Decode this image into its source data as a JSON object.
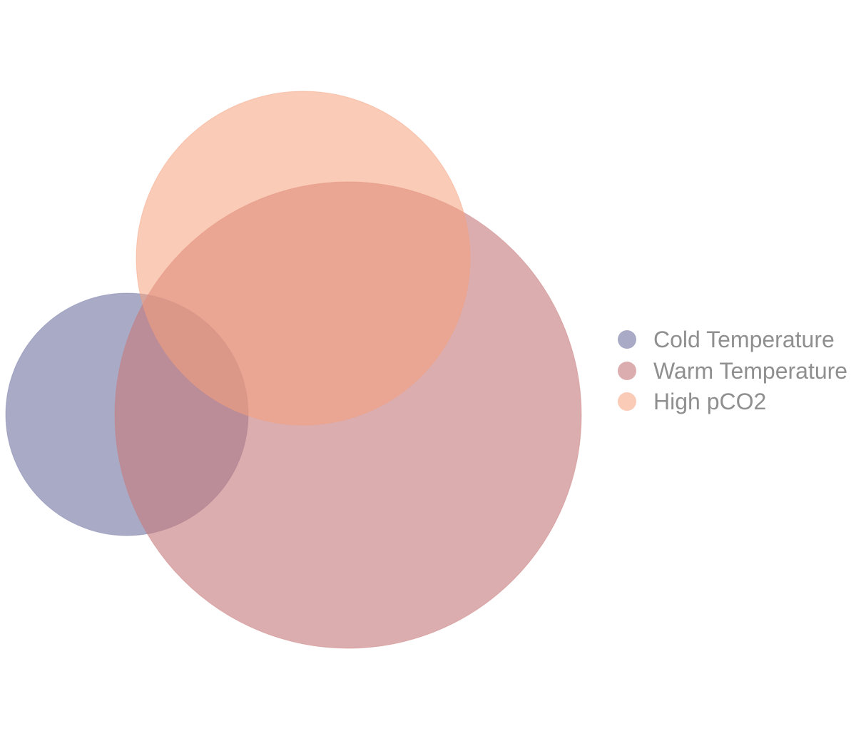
{
  "diagram": {
    "type": "venn",
    "sets": [
      {
        "name": "Cold Temperature",
        "color": "#7b7ea8"
      },
      {
        "name": "Warm Temperature",
        "color": "#c77a7c"
      },
      {
        "name": "High pCO2",
        "color": "#f5a07c"
      }
    ]
  },
  "legend": {
    "items": [
      {
        "label": "Cold Temperature",
        "color": "#7b7ea8"
      },
      {
        "label": "Warm Temperature",
        "color": "#c77a7c"
      },
      {
        "label": "High pCO2",
        "color": "#f5a07c"
      }
    ]
  }
}
